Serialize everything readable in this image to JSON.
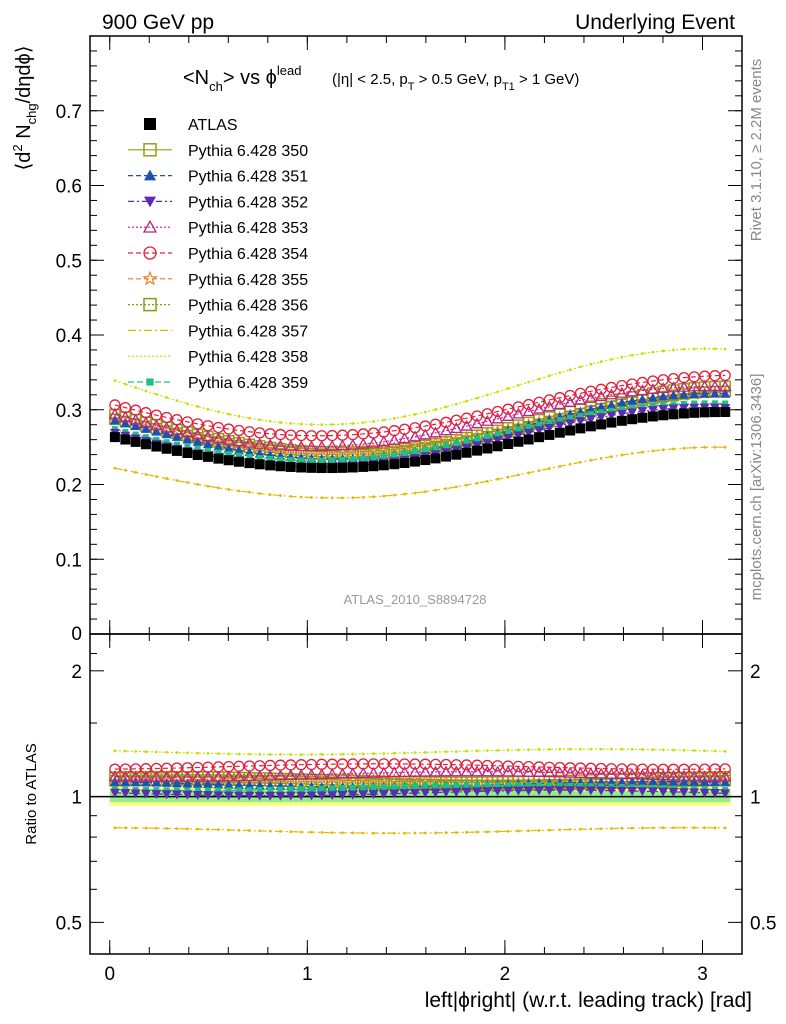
{
  "header": {
    "left": "900 GeV pp",
    "right": "Underlying Event"
  },
  "side_text": {
    "rivet": "Rivet 3.1.10, ≥ 2.2M events",
    "mcplots": "mcplots.cern.ch [arXiv:1306.3436]"
  },
  "plot_title": {
    "main": "<N_ch> vs φ^lead",
    "cuts": "(|η| < 2.5, p_T > 0.5 GeV, p_T1 > 1 GeV)"
  },
  "analysis_id": "ATLAS_2010_S8894728",
  "colors": {
    "ATLAS": "#000000",
    "350": "#9a9a1a",
    "351": "#1f4fb0",
    "352": "#5b2db2",
    "353": "#c02080",
    "354": "#e0203a",
    "355": "#f07a20",
    "356": "#8a9a10",
    "357": "#e6b800",
    "358": "#c8e000",
    "359": "#20c080",
    "band_yellow": "#ffff80",
    "band_green": "#90ee90"
  },
  "chart_data": [
    {
      "type": "scatter",
      "panel": "main",
      "ylabel": "⟨d² N_chg/dηdφ⟩",
      "xlim": [
        -0.1,
        3.2
      ],
      "ylim": [
        0.0,
        0.8
      ],
      "yticks": [
        0.1,
        0.2,
        0.3,
        0.4,
        0.5,
        0.6,
        0.7
      ],
      "ytick_labels": [
        "0.1",
        "0.2",
        "0.3",
        "0.4",
        "0.5",
        "0.6",
        "0.7"
      ],
      "ytick_zero_label": "0",
      "grid": false,
      "legend_position": "top-left",
      "x": [
        0.026,
        0.079,
        0.131,
        0.183,
        0.236,
        0.288,
        0.34,
        0.393,
        0.445,
        0.497,
        0.55,
        0.602,
        0.654,
        0.707,
        0.759,
        0.812,
        0.864,
        0.916,
        0.969,
        1.021,
        1.073,
        1.126,
        1.178,
        1.23,
        1.283,
        1.335,
        1.387,
        1.44,
        1.492,
        1.545,
        1.597,
        1.649,
        1.702,
        1.754,
        1.806,
        1.859,
        1.911,
        1.963,
        2.016,
        2.068,
        2.12,
        2.173,
        2.225,
        2.278,
        2.33,
        2.382,
        2.435,
        2.487,
        2.539,
        2.592,
        2.644,
        2.696,
        2.749,
        2.801,
        2.853,
        2.906,
        2.958,
        3.011,
        3.063,
        3.115
      ],
      "model": {
        "note_series_offsets_vs_ATLAS_ratio": true
      },
      "series": [
        {
          "name": "ATLAS",
          "marker": "square-filled",
          "atlas_profile": {
            "y0": 0.265,
            "ymin": 0.222,
            "xmin": 1.1,
            "yend": 0.297
          }
        },
        {
          "name": "Pythia 6.428 350",
          "marker": "square-open-line",
          "ratio": 1.1
        },
        {
          "name": "Pythia 6.428 351",
          "marker": "triangle-up-filled",
          "ratio": 1.07
        },
        {
          "name": "Pythia 6.428 352",
          "marker": "triangle-down-filled",
          "ratio": 1.02
        },
        {
          "name": "Pythia 6.428 353",
          "marker": "triangle-up-open",
          "ratio": 1.13
        },
        {
          "name": "Pythia 6.428 354",
          "marker": "circle-open",
          "ratio": 1.18
        },
        {
          "name": "Pythia 6.428 355",
          "marker": "star-open",
          "ratio": 1.09
        },
        {
          "name": "Pythia 6.428 356",
          "marker": "square-open-dotted",
          "ratio": 1.08
        },
        {
          "name": "Pythia 6.428 357",
          "marker": "line-dashdot",
          "ratio": 0.83
        },
        {
          "name": "Pythia 6.428 358",
          "marker": "line-dotted",
          "ratio": 1.28
        },
        {
          "name": "Pythia 6.428 359",
          "marker": "square-small-filled",
          "ratio": 1.05
        }
      ]
    },
    {
      "type": "scatter",
      "panel": "ratio",
      "ylabel": "Ratio to ATLAS",
      "ylim": [
        0.42,
        2.45
      ],
      "ylog": true,
      "yticks": [
        0.5,
        1,
        2
      ],
      "ytick_labels": [
        "0.5",
        "1",
        "2"
      ],
      "xlabel": "left|ϕright| (w.r.t. leading track) [rad]",
      "xticks": [
        0,
        1,
        2,
        3
      ],
      "xtick_labels": [
        "0",
        "1",
        "2",
        "3"
      ],
      "uncertainty_band": [
        0.95,
        1.05
      ]
    }
  ]
}
